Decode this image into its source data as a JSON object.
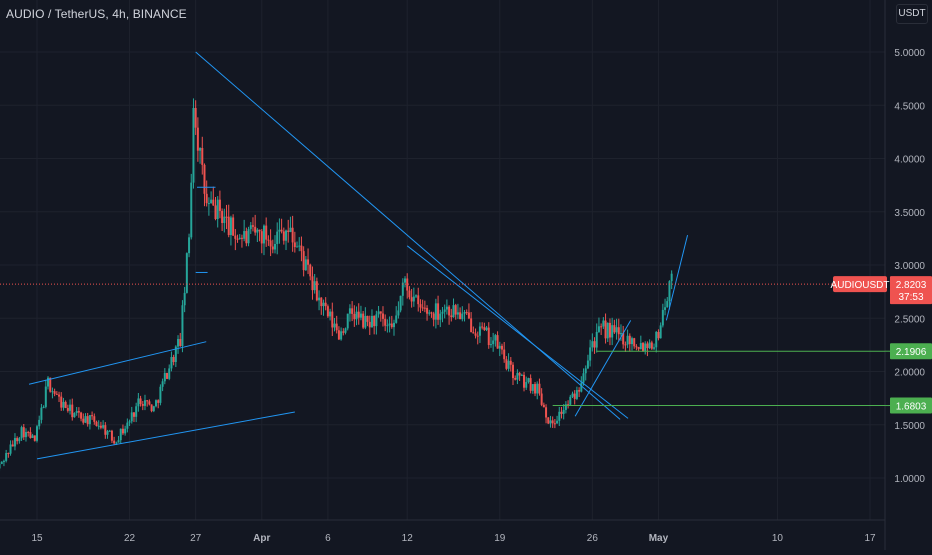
{
  "header": {
    "title": "AUDIO / TetherUS, 4h, BINANCE",
    "currency_button": "USDT"
  },
  "colors": {
    "background": "#131722",
    "grid": "#1e222d",
    "up": "#26a69a",
    "down": "#ef5350",
    "trendline": "#2196f3",
    "support": "#4caf50",
    "axis_text": "#b2b5be"
  },
  "chart_data": {
    "type": "candlestick",
    "symbol": "AUDIOUSDT",
    "exchange": "BINANCE",
    "interval": "4h",
    "ylim": [
      0.55,
      5.45
    ],
    "yticks": [
      {
        "value": 1.0,
        "label": "1.0000"
      },
      {
        "value": 1.5,
        "label": "1.5000"
      },
      {
        "value": 2.0,
        "label": "2.0000"
      },
      {
        "value": 2.5,
        "label": "2.5000"
      },
      {
        "value": 3.0,
        "label": "3.0000"
      },
      {
        "value": 3.5,
        "label": "3.5000"
      },
      {
        "value": 4.0,
        "label": "4.0000"
      },
      {
        "value": 4.5,
        "label": "4.5000"
      },
      {
        "value": 5.0,
        "label": "5.0000"
      }
    ],
    "xticks": [
      {
        "date": "2021-03-15",
        "label": "15",
        "bold": false
      },
      {
        "date": "2021-03-22",
        "label": "22",
        "bold": false
      },
      {
        "date": "2021-03-27",
        "label": "27",
        "bold": false
      },
      {
        "date": "2021-04-01",
        "label": "Apr",
        "bold": true
      },
      {
        "date": "2021-04-06",
        "label": "6",
        "bold": false
      },
      {
        "date": "2021-04-12",
        "label": "12",
        "bold": false
      },
      {
        "date": "2021-04-19",
        "label": "19",
        "bold": false
      },
      {
        "date": "2021-04-26",
        "label": "26",
        "bold": false
      },
      {
        "date": "2021-05-01",
        "label": "May",
        "bold": true
      },
      {
        "date": "2021-05-10",
        "label": "10",
        "bold": false
      },
      {
        "date": "2021-05-17",
        "label": "17",
        "bold": false
      }
    ],
    "price_path": [
      [
        "2021-03-12",
        1.05
      ],
      [
        "2021-03-13",
        1.25
      ],
      [
        "2021-03-14",
        1.45
      ],
      [
        "2021-03-15",
        1.35
      ],
      [
        "2021-03-16",
        1.9
      ],
      [
        "2021-03-17",
        1.7
      ],
      [
        "2021-03-18",
        1.6
      ],
      [
        "2021-03-19",
        1.55
      ],
      [
        "2021-03-20",
        1.5
      ],
      [
        "2021-03-21",
        1.35
      ],
      [
        "2021-03-22",
        1.5
      ],
      [
        "2021-03-23",
        1.75
      ],
      [
        "2021-03-24",
        1.65
      ],
      [
        "2021-03-25",
        2.0
      ],
      [
        "2021-03-26",
        2.3
      ],
      [
        "2021-03-26.7",
        3.3
      ],
      [
        "2021-03-27",
        4.55
      ],
      [
        "2021-03-27.6",
        3.9
      ],
      [
        "2021-03-28",
        3.55
      ],
      [
        "2021-03-29",
        3.5
      ],
      [
        "2021-03-30",
        3.3
      ],
      [
        "2021-03-31",
        3.25
      ],
      [
        "2021-04-01",
        3.3
      ],
      [
        "2021-04-02",
        3.25
      ],
      [
        "2021-04-03",
        3.35
      ],
      [
        "2021-04-04",
        3.15
      ],
      [
        "2021-04-05",
        2.8
      ],
      [
        "2021-04-06",
        2.55
      ],
      [
        "2021-04-07",
        2.35
      ],
      [
        "2021-04-08",
        2.55
      ],
      [
        "2021-04-09",
        2.45
      ],
      [
        "2021-04-10",
        2.5
      ],
      [
        "2021-04-11",
        2.35
      ],
      [
        "2021-04-12",
        2.85
      ],
      [
        "2021-04-13",
        2.6
      ],
      [
        "2021-04-14",
        2.55
      ],
      [
        "2021-04-15",
        2.6
      ],
      [
        "2021-04-16",
        2.55
      ],
      [
        "2021-04-17",
        2.45
      ],
      [
        "2021-04-18",
        2.35
      ],
      [
        "2021-04-19",
        2.25
      ],
      [
        "2021-04-20",
        2.0
      ],
      [
        "2021-04-21",
        1.9
      ],
      [
        "2021-04-22",
        1.85
      ],
      [
        "2021-04-23",
        1.5
      ],
      [
        "2021-04-24",
        1.65
      ],
      [
        "2021-04-25",
        1.8
      ],
      [
        "2021-04-26",
        2.25
      ],
      [
        "2021-04-27",
        2.4
      ],
      [
        "2021-04-28",
        2.35
      ],
      [
        "2021-04-29",
        2.3
      ],
      [
        "2021-04-30",
        2.25
      ],
      [
        "2021-05-01",
        2.3
      ],
      [
        "2021-05-01.6",
        2.6
      ],
      [
        "2021-05-02",
        2.82
      ]
    ],
    "annotations": {
      "trendlines": [
        {
          "name": "channel-upper",
          "from": [
            "2021-03-14.4",
            1.88
          ],
          "to": [
            "2021-03-27.8",
            2.28
          ]
        },
        {
          "name": "channel-lower",
          "from": [
            "2021-03-15",
            1.18
          ],
          "to": [
            "2021-04-03.5",
            1.62
          ]
        },
        {
          "name": "descending-resistance",
          "from": [
            "2021-03-27",
            5.0
          ],
          "to": [
            "2021-04-28.1",
            1.55
          ]
        },
        {
          "name": "descending-resistance-2",
          "from": [
            "2021-04-12",
            3.18
          ],
          "to": [
            "2021-04-28.7",
            1.56
          ]
        },
        {
          "name": "rising-support",
          "from": [
            "2021-04-24.7",
            1.58
          ],
          "to": [
            "2021-04-28.9",
            2.48
          ]
        },
        {
          "name": "rising-support-2",
          "from": [
            "2021-05-01.6",
            2.48
          ],
          "to": [
            "2021-05-03.2",
            3.28
          ]
        },
        {
          "name": "small-level-1",
          "from": [
            "2021-03-27",
            2.93
          ],
          "to": [
            "2021-03-27.9",
            2.93
          ]
        },
        {
          "name": "small-level-2",
          "from": [
            "2021-03-27.1",
            3.73
          ],
          "to": [
            "2021-03-28.5",
            3.73
          ]
        }
      ],
      "support_levels": [
        {
          "value": 2.1906,
          "label": "2.1906",
          "from": "2021-04-26.3"
        },
        {
          "value": 1.6803,
          "label": "1.6803",
          "from": "2021-04-23"
        }
      ]
    },
    "current_price": {
      "symbol_label": "AUDIOUSDT",
      "value": 2.8203,
      "value_label": "2.8203",
      "countdown": "37:53"
    }
  }
}
